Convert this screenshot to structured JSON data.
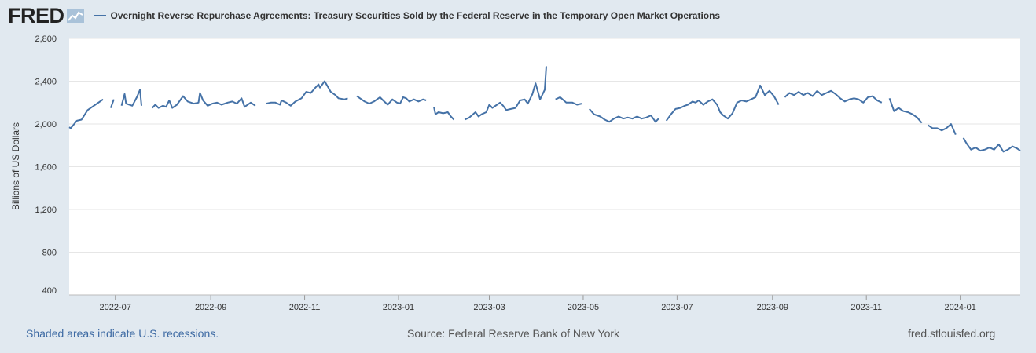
{
  "header": {
    "logo": "FRED",
    "series_title": "Overnight Reverse Repurchase Agreements: Treasury Securities Sold by the Federal Reserve in the Temporary Open Market Operations"
  },
  "footer": {
    "recession_note": "Shaded areas indicate U.S. recessions.",
    "source": "Source: Federal Reserve Bank of New York",
    "site": "fred.stlouisfed.org"
  },
  "colors": {
    "line": "#4572a7",
    "background": "#e1e9f0",
    "plot": "#ffffff",
    "grid": "#e6e6e6"
  },
  "chart_data": {
    "type": "line",
    "ylabel": "Billions of US Dollars",
    "ylim": [
      400,
      2800
    ],
    "yticks": [
      400,
      800,
      1200,
      1600,
      2000,
      2400,
      2800
    ],
    "ytick_labels": [
      "400",
      "800",
      "1,200",
      "1,600",
      "2,000",
      "2,400",
      "2,800"
    ],
    "xlim": [
      "2022-06-01",
      "2024-02-09"
    ],
    "xticks": [
      "2022-07-01",
      "2022-09-01",
      "2022-11-01",
      "2023-01-01",
      "2023-03-01",
      "2023-05-01",
      "2023-07-01",
      "2023-09-01",
      "2023-11-01",
      "2024-01-01"
    ],
    "xtick_labels": [
      "2022-07",
      "2022-09",
      "2022-11",
      "2023-01",
      "2023-03",
      "2023-05",
      "2023-07",
      "2023-09",
      "2023-11",
      "2024-01"
    ],
    "grid": true,
    "series": [
      {
        "values": [
          [
            "2022-06-01",
            1970
          ],
          [
            "2022-06-02",
            1960
          ],
          [
            "2022-06-06",
            2030
          ],
          [
            "2022-06-09",
            2040
          ],
          [
            "2022-06-13",
            2130
          ],
          [
            "2022-06-16",
            2160
          ],
          [
            "2022-06-20",
            2200
          ],
          [
            "2022-06-23",
            2230
          ],
          [
            "2022-06-24",
            null
          ],
          [
            "2022-06-28",
            2150
          ],
          [
            "2022-06-30",
            2230
          ],
          [
            "2022-07-01",
            null
          ],
          [
            "2022-07-05",
            2170
          ],
          [
            "2022-07-07",
            2280
          ],
          [
            "2022-07-08",
            2190
          ],
          [
            "2022-07-12",
            2170
          ],
          [
            "2022-07-15",
            2250
          ],
          [
            "2022-07-17",
            2320
          ],
          [
            "2022-07-18",
            2170
          ],
          [
            "2022-07-19",
            null
          ],
          [
            "2022-07-25",
            2150
          ],
          [
            "2022-07-27",
            2180
          ],
          [
            "2022-07-29",
            2150
          ],
          [
            "2022-08-01",
            2170
          ],
          [
            "2022-08-03",
            2160
          ],
          [
            "2022-08-05",
            2220
          ],
          [
            "2022-08-07",
            2150
          ],
          [
            "2022-08-10",
            2180
          ],
          [
            "2022-08-14",
            2260
          ],
          [
            "2022-08-17",
            2210
          ],
          [
            "2022-08-21",
            2190
          ],
          [
            "2022-08-24",
            2200
          ],
          [
            "2022-08-25",
            2290
          ],
          [
            "2022-08-27",
            2220
          ],
          [
            "2022-08-30",
            2170
          ],
          [
            "2022-09-02",
            2190
          ],
          [
            "2022-09-05",
            2200
          ],
          [
            "2022-09-08",
            2180
          ],
          [
            "2022-09-12",
            2200
          ],
          [
            "2022-09-15",
            2210
          ],
          [
            "2022-09-18",
            2190
          ],
          [
            "2022-09-21",
            2240
          ],
          [
            "2022-09-23",
            2160
          ],
          [
            "2022-09-27",
            2200
          ],
          [
            "2022-09-30",
            2170
          ],
          [
            "2022-10-01",
            null
          ],
          [
            "2022-10-07",
            2190
          ],
          [
            "2022-10-10",
            2200
          ],
          [
            "2022-10-13",
            2200
          ],
          [
            "2022-10-16",
            2180
          ],
          [
            "2022-10-17",
            2220
          ],
          [
            "2022-10-20",
            2200
          ],
          [
            "2022-10-23",
            2170
          ],
          [
            "2022-10-26",
            2210
          ],
          [
            "2022-10-30",
            2240
          ],
          [
            "2022-11-02",
            2300
          ],
          [
            "2022-11-05",
            2290
          ],
          [
            "2022-11-08",
            2340
          ],
          [
            "2022-11-10",
            2370
          ],
          [
            "2022-11-11",
            2340
          ],
          [
            "2022-11-14",
            2400
          ],
          [
            "2022-11-16",
            2350
          ],
          [
            "2022-11-18",
            2300
          ],
          [
            "2022-11-21",
            2270
          ],
          [
            "2022-11-23",
            2240
          ],
          [
            "2022-11-27",
            2230
          ],
          [
            "2022-11-29",
            2240
          ],
          [
            "2022-12-01",
            null
          ],
          [
            "2022-12-05",
            2260
          ],
          [
            "2022-12-07",
            2240
          ],
          [
            "2022-12-10",
            2210
          ],
          [
            "2022-12-13",
            2190
          ],
          [
            "2022-12-16",
            2210
          ],
          [
            "2022-12-20",
            2250
          ],
          [
            "2022-12-22",
            2220
          ],
          [
            "2022-12-25",
            2180
          ],
          [
            "2022-12-28",
            2230
          ],
          [
            "2022-12-31",
            2200
          ],
          [
            "2023-01-02",
            2190
          ],
          [
            "2023-01-04",
            2250
          ],
          [
            "2023-01-06",
            2240
          ],
          [
            "2023-01-08",
            2210
          ],
          [
            "2023-01-11",
            2230
          ],
          [
            "2023-01-14",
            2210
          ],
          [
            "2023-01-17",
            2230
          ],
          [
            "2023-01-19",
            2220
          ],
          [
            "2023-01-20",
            null
          ],
          [
            "2023-01-24",
            2160
          ],
          [
            "2023-01-25",
            2090
          ],
          [
            "2023-01-27",
            2110
          ],
          [
            "2023-01-30",
            2100
          ],
          [
            "2023-02-02",
            2110
          ],
          [
            "2023-02-04",
            2070
          ],
          [
            "2023-02-06",
            2040
          ],
          [
            "2023-02-08",
            null
          ],
          [
            "2023-02-13",
            2040
          ],
          [
            "2023-02-16",
            2060
          ],
          [
            "2023-02-20",
            2110
          ],
          [
            "2023-02-22",
            2070
          ],
          [
            "2023-02-24",
            2090
          ],
          [
            "2023-02-27",
            2110
          ],
          [
            "2023-03-01",
            2180
          ],
          [
            "2023-03-03",
            2150
          ],
          [
            "2023-03-06",
            2180
          ],
          [
            "2023-03-08",
            2200
          ],
          [
            "2023-03-10",
            2170
          ],
          [
            "2023-03-12",
            2130
          ],
          [
            "2023-03-15",
            2140
          ],
          [
            "2023-03-18",
            2150
          ],
          [
            "2023-03-21",
            2220
          ],
          [
            "2023-03-24",
            2230
          ],
          [
            "2023-03-26",
            2190
          ],
          [
            "2023-03-29",
            2280
          ],
          [
            "2023-03-31",
            2380
          ],
          [
            "2023-04-03",
            2230
          ],
          [
            "2023-04-06",
            2320
          ],
          [
            "2023-04-07",
            2540
          ],
          [
            "2023-04-08",
            null
          ],
          [
            "2023-04-13",
            2230
          ],
          [
            "2023-04-16",
            2250
          ],
          [
            "2023-04-20",
            2200
          ],
          [
            "2023-04-24",
            2200
          ],
          [
            "2023-04-27",
            2180
          ],
          [
            "2023-04-30",
            2190
          ],
          [
            "2023-05-01",
            null
          ],
          [
            "2023-05-05",
            2140
          ],
          [
            "2023-05-08",
            2090
          ],
          [
            "2023-05-12",
            2070
          ],
          [
            "2023-05-15",
            2040
          ],
          [
            "2023-05-18",
            2020
          ],
          [
            "2023-05-21",
            2050
          ],
          [
            "2023-05-24",
            2070
          ],
          [
            "2023-05-27",
            2050
          ],
          [
            "2023-05-30",
            2060
          ],
          [
            "2023-06-02",
            2050
          ],
          [
            "2023-06-05",
            2070
          ],
          [
            "2023-06-08",
            2050
          ],
          [
            "2023-06-11",
            2060
          ],
          [
            "2023-06-14",
            2080
          ],
          [
            "2023-06-17",
            2020
          ],
          [
            "2023-06-19",
            2050
          ],
          [
            "2023-06-20",
            null
          ],
          [
            "2023-06-24",
            2030
          ],
          [
            "2023-06-27",
            2090
          ],
          [
            "2023-06-30",
            2140
          ],
          [
            "2023-07-03",
            2150
          ],
          [
            "2023-07-06",
            2170
          ],
          [
            "2023-07-08",
            2180
          ],
          [
            "2023-07-11",
            2210
          ],
          [
            "2023-07-13",
            2200
          ],
          [
            "2023-07-15",
            2220
          ],
          [
            "2023-07-18",
            2180
          ],
          [
            "2023-07-21",
            2210
          ],
          [
            "2023-07-24",
            2230
          ],
          [
            "2023-07-27",
            2180
          ],
          [
            "2023-07-29",
            2110
          ],
          [
            "2023-07-31",
            2080
          ],
          [
            "2023-08-03",
            2050
          ],
          [
            "2023-08-06",
            2100
          ],
          [
            "2023-08-09",
            2200
          ],
          [
            "2023-08-12",
            2220
          ],
          [
            "2023-08-15",
            2210
          ],
          [
            "2023-08-18",
            2230
          ],
          [
            "2023-08-21",
            2250
          ],
          [
            "2023-08-24",
            2360
          ],
          [
            "2023-08-27",
            2270
          ],
          [
            "2023-08-30",
            2310
          ],
          [
            "2023-09-02",
            2260
          ],
          [
            "2023-09-05",
            2180
          ],
          [
            "2023-09-06",
            null
          ],
          [
            "2023-09-09",
            2250
          ],
          [
            "2023-09-12",
            2290
          ],
          [
            "2023-09-15",
            2270
          ],
          [
            "2023-09-18",
            2300
          ],
          [
            "2023-09-21",
            2270
          ],
          [
            "2023-09-24",
            2290
          ],
          [
            "2023-09-27",
            2260
          ],
          [
            "2023-09-30",
            2310
          ],
          [
            "2023-10-03",
            2270
          ],
          [
            "2023-10-06",
            2290
          ],
          [
            "2023-10-09",
            2310
          ],
          [
            "2023-10-12",
            2280
          ],
          [
            "2023-10-15",
            2240
          ],
          [
            "2023-10-18",
            2210
          ],
          [
            "2023-10-21",
            2230
          ],
          [
            "2023-10-24",
            2240
          ],
          [
            "2023-10-27",
            2230
          ],
          [
            "2023-10-30",
            2200
          ],
          [
            "2023-11-02",
            2250
          ],
          [
            "2023-11-05",
            2260
          ],
          [
            "2023-11-08",
            2220
          ],
          [
            "2023-11-11",
            2200
          ],
          [
            "2023-11-12",
            null
          ],
          [
            "2023-11-16",
            2240
          ],
          [
            "2023-11-19",
            2120
          ],
          [
            "2023-11-22",
            2150
          ],
          [
            "2023-11-25",
            2120
          ],
          [
            "2023-11-28",
            2110
          ],
          [
            "2023-12-01",
            2090
          ],
          [
            "2023-12-04",
            2060
          ],
          [
            "2023-12-07",
            2010
          ],
          [
            "2023-12-08",
            null
          ],
          [
            "2023-12-11",
            1990
          ],
          [
            "2023-12-14",
            1960
          ],
          [
            "2023-12-17",
            1960
          ],
          [
            "2023-12-20",
            1940
          ],
          [
            "2023-12-23",
            1960
          ],
          [
            "2023-12-26",
            2000
          ],
          [
            "2023-12-29",
            1900
          ],
          [
            "2023-12-30",
            null
          ],
          [
            "2024-01-03",
            1870
          ],
          [
            "2024-01-05",
            1820
          ],
          [
            "2024-01-08",
            1760
          ],
          [
            "2024-01-11",
            1780
          ],
          [
            "2024-01-14",
            1750
          ],
          [
            "2024-01-17",
            1760
          ],
          [
            "2024-01-20",
            1780
          ],
          [
            "2024-01-23",
            1760
          ],
          [
            "2024-01-26",
            1810
          ],
          [
            "2024-01-29",
            1740
          ],
          [
            "2024-02-01",
            1760
          ],
          [
            "2024-02-04",
            1790
          ],
          [
            "2024-02-07",
            1770
          ],
          [
            "2024-02-09",
            1750
          ]
        ]
      }
    ]
  }
}
